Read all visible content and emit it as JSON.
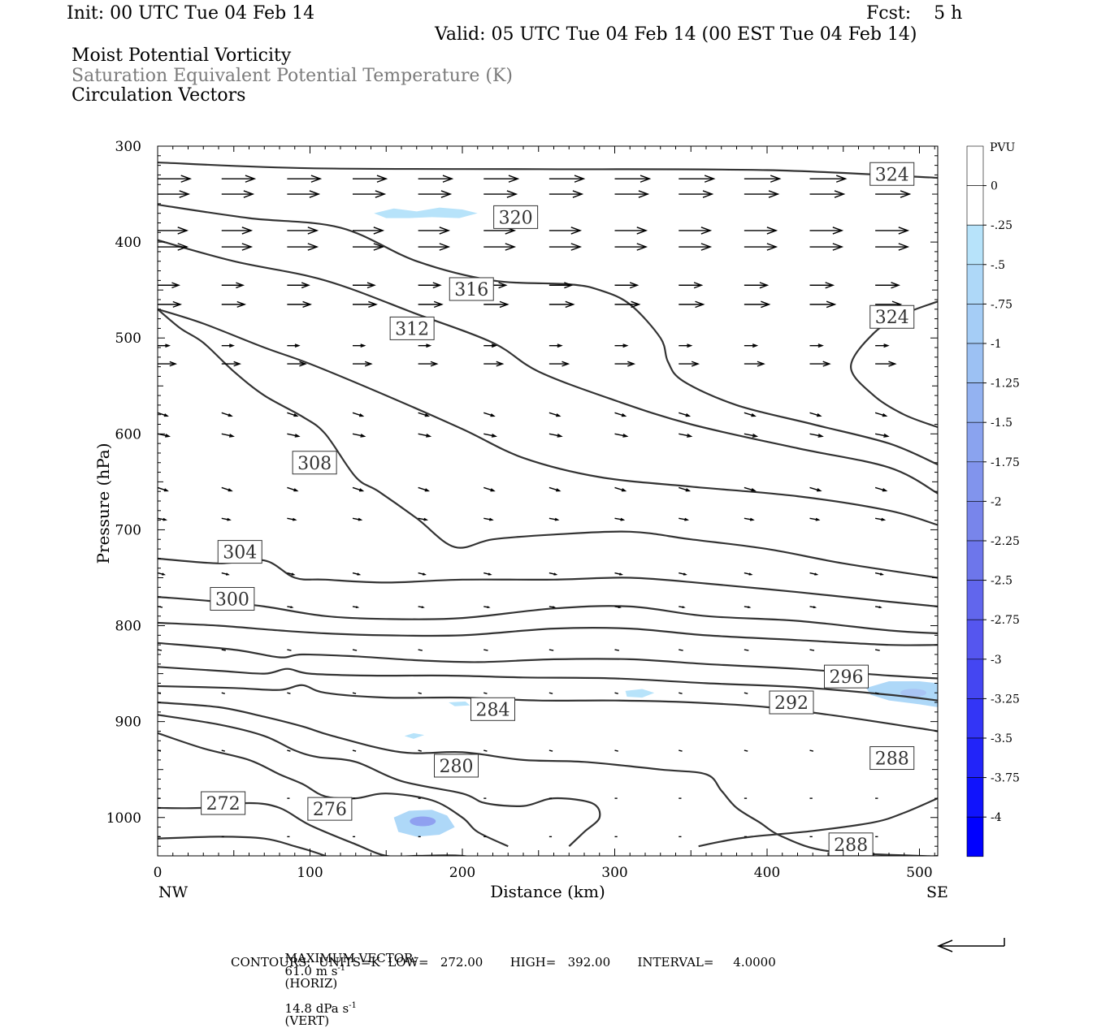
{
  "header": {
    "init": "Init: 00 UTC Tue 04 Feb 14",
    "fcst": "Fcst:    5 h",
    "valid": "Valid: 05 UTC Tue 04 Feb 14 (00 EST Tue 04 Feb 14)",
    "field1": "Moist Potential Vorticity",
    "field2": "Saturation Equivalent Potential Temperature (K)",
    "field3": "Circulation Vectors"
  },
  "footer": {
    "max_vector_label": "MAXIMUM VECTOR:",
    "horiz_value": "61.0 m s",
    "horiz_exp": "-1",
    "horiz_tag": "(HORIZ)",
    "vert_value": "14.8 dPa s",
    "vert_exp": "-1",
    "vert_tag": "(VERT)",
    "contours": "CONTOURS:  UNITS=K  LOW=   272.00       HIGH=   392.00       INTERVAL=     4.0000"
  },
  "colors": {
    "contour": "#333333",
    "pv_light": "#b7e3fa",
    "pv_mid": "#8fa0f0",
    "pv_dark": "#0000ff"
  },
  "chart_data": {
    "type": "contour",
    "xlabel": "Distance (km)",
    "ylabel": "Pressure (hPa)",
    "xlim": [
      0,
      512
    ],
    "ylim": [
      1040,
      300
    ],
    "xticks": [
      0,
      100,
      200,
      300,
      400,
      500
    ],
    "yticks": [
      300,
      400,
      500,
      600,
      700,
      800,
      900,
      1000
    ],
    "x_end_labels": {
      "left": "NW",
      "right": "SE"
    },
    "colorbar": {
      "title": "PVU",
      "labels": [
        "0",
        "-.25",
        "-.5",
        "-.75",
        "-1",
        "-1.25",
        "-1.5",
        "-1.75",
        "-2",
        "-2.25",
        "-2.5",
        "-2.75",
        "-3",
        "-3.25",
        "-3.5",
        "-3.75",
        "-4"
      ],
      "colors": [
        "#ffffff",
        "#ffffff",
        "#b7e3fa",
        "#aed8f8",
        "#a5cdf6",
        "#9cc1f3",
        "#93b2f1",
        "#8aa3ef",
        "#8194ed",
        "#7885eb",
        "#6d76eb",
        "#6166ed",
        "#5556ef",
        "#4446f2",
        "#3335f6",
        "#2224f9",
        "#1013fc",
        "#0000ff"
      ]
    },
    "contour_lines": [
      {
        "label": "324",
        "points": [
          [
            0,
            317
          ],
          [
            100,
            323
          ],
          [
            250,
            324
          ],
          [
            400,
            325
          ],
          [
            512,
            333
          ]
        ],
        "label_at": [
          482,
          329
        ]
      },
      {
        "label": "324",
        "points": [
          [
            512,
            462
          ],
          [
            490,
            475
          ],
          [
            470,
            495
          ],
          [
            455,
            530
          ],
          [
            470,
            560
          ],
          [
            490,
            580
          ],
          [
            512,
            593
          ]
        ],
        "label_at": [
          482,
          478
        ]
      },
      {
        "label": "320",
        "points": [
          [
            0,
            361
          ],
          [
            60,
            375
          ],
          [
            120,
            385
          ],
          [
            170,
            420
          ],
          [
            220,
            440
          ],
          [
            270,
            444
          ],
          [
            290,
            450
          ],
          [
            310,
            465
          ],
          [
            330,
            500
          ],
          [
            335,
            525
          ],
          [
            345,
            545
          ],
          [
            380,
            570
          ],
          [
            430,
            590
          ],
          [
            480,
            610
          ],
          [
            512,
            632
          ]
        ],
        "label_at": [
          235,
          374
        ]
      },
      {
        "label": "316",
        "points": [
          [
            0,
            398
          ],
          [
            50,
            420
          ],
          [
            110,
            440
          ],
          [
            170,
            475
          ],
          [
            220,
            505
          ],
          [
            250,
            535
          ],
          [
            300,
            565
          ],
          [
            350,
            590
          ],
          [
            420,
            615
          ],
          [
            480,
            635
          ],
          [
            512,
            662
          ]
        ],
        "label_at": [
          206,
          449
        ]
      },
      {
        "label": "312",
        "points": [
          [
            0,
            470
          ],
          [
            30,
            485
          ],
          [
            70,
            510
          ],
          [
            100,
            527
          ],
          [
            150,
            560
          ],
          [
            200,
            595
          ],
          [
            240,
            625
          ],
          [
            290,
            645
          ],
          [
            350,
            655
          ],
          [
            420,
            665
          ],
          [
            480,
            680
          ],
          [
            512,
            695
          ]
        ],
        "label_at": [
          167,
          490
        ]
      },
      {
        "label": "308",
        "points": [
          [
            0,
            470
          ],
          [
            15,
            490
          ],
          [
            30,
            505
          ],
          [
            50,
            535
          ],
          [
            70,
            560
          ],
          [
            95,
            582
          ],
          [
            110,
            600
          ],
          [
            130,
            645
          ],
          [
            145,
            660
          ],
          [
            170,
            688
          ],
          [
            195,
            718
          ],
          [
            220,
            710
          ],
          [
            260,
            705
          ],
          [
            310,
            702
          ],
          [
            350,
            710
          ],
          [
            400,
            720
          ],
          [
            450,
            735
          ],
          [
            512,
            750
          ]
        ],
        "label_at": [
          103,
          630
        ]
      },
      {
        "label": "304",
        "points": [
          [
            0,
            730
          ],
          [
            40,
            735
          ],
          [
            70,
            732
          ],
          [
            90,
            750
          ],
          [
            110,
            752
          ],
          [
            150,
            755
          ],
          [
            200,
            752
          ],
          [
            260,
            752
          ],
          [
            310,
            750
          ],
          [
            360,
            756
          ],
          [
            420,
            765
          ],
          [
            480,
            775
          ],
          [
            512,
            780
          ]
        ],
        "label_at": [
          54,
          723
        ]
      },
      {
        "label": "300",
        "points": [
          [
            0,
            770
          ],
          [
            40,
            775
          ],
          [
            70,
            780
          ],
          [
            110,
            790
          ],
          [
            150,
            793
          ],
          [
            200,
            792
          ],
          [
            260,
            782
          ],
          [
            310,
            780
          ],
          [
            360,
            790
          ],
          [
            420,
            795
          ],
          [
            480,
            805
          ],
          [
            512,
            808
          ]
        ],
        "label_at": [
          49,
          772
        ]
      },
      {
        "label": "",
        "points": [
          [
            0,
            797
          ],
          [
            40,
            800
          ],
          [
            80,
            805
          ],
          [
            110,
            808
          ],
          [
            150,
            810
          ],
          [
            200,
            810
          ],
          [
            260,
            803
          ],
          [
            310,
            803
          ],
          [
            360,
            810
          ],
          [
            420,
            815
          ],
          [
            480,
            820
          ],
          [
            512,
            820
          ]
        ],
        "label_at": null
      },
      {
        "label": "",
        "points": [
          [
            0,
            818
          ],
          [
            50,
            825
          ],
          [
            80,
            833
          ],
          [
            95,
            830
          ],
          [
            130,
            832
          ],
          [
            170,
            836
          ],
          [
            210,
            838
          ],
          [
            260,
            835
          ],
          [
            310,
            835
          ],
          [
            360,
            840
          ],
          [
            420,
            845
          ],
          [
            480,
            852
          ],
          [
            512,
            855
          ]
        ],
        "label_at": null
      },
      {
        "label": "296",
        "points": [
          [
            0,
            843
          ],
          [
            40,
            847
          ],
          [
            70,
            850
          ],
          [
            85,
            845
          ],
          [
            100,
            850
          ],
          [
            140,
            852
          ],
          [
            190,
            852
          ],
          [
            240,
            854
          ],
          [
            300,
            855
          ],
          [
            360,
            860
          ],
          [
            420,
            864
          ],
          [
            480,
            872
          ],
          [
            512,
            878
          ]
        ],
        "label_at": [
          452,
          853
        ]
      },
      {
        "label": "292",
        "points": [
          [
            0,
            863
          ],
          [
            50,
            865
          ],
          [
            80,
            867
          ],
          [
            95,
            862
          ],
          [
            110,
            870
          ],
          [
            150,
            875
          ],
          [
            200,
            875
          ],
          [
            250,
            878
          ],
          [
            300,
            878
          ],
          [
            350,
            880
          ],
          [
            400,
            885
          ],
          [
            450,
            895
          ],
          [
            500,
            907
          ],
          [
            512,
            910
          ]
        ],
        "label_at": [
          416,
          880
        ]
      },
      {
        "label": "288",
        "points": [
          [
            0,
            880
          ],
          [
            40,
            885
          ],
          [
            70,
            895
          ],
          [
            95,
            905
          ],
          [
            115,
            915
          ],
          [
            160,
            932
          ],
          [
            200,
            932
          ],
          [
            240,
            940
          ],
          [
            280,
            942
          ],
          [
            330,
            950
          ],
          [
            360,
            955
          ],
          [
            370,
            972
          ],
          [
            380,
            990
          ],
          [
            395,
            1005
          ],
          [
            410,
            1020
          ],
          [
            440,
            1035
          ],
          [
            500,
            1040
          ],
          [
            512,
            1040
          ]
        ],
        "label_at": [
          482,
          938
        ]
      },
      {
        "label": "288",
        "points": [
          [
            355,
            1030
          ],
          [
            370,
            1025
          ],
          [
            390,
            1020
          ],
          [
            430,
            1014
          ],
          [
            470,
            1005
          ],
          [
            490,
            995
          ],
          [
            512,
            980
          ]
        ],
        "label_at": [
          455,
          1028
        ]
      },
      {
        "label": "284",
        "points": [
          [
            0,
            893
          ],
          [
            40,
            903
          ],
          [
            70,
            915
          ],
          [
            90,
            930
          ],
          [
            105,
            937
          ],
          [
            130,
            942
          ],
          [
            160,
            962
          ],
          [
            200,
            975
          ],
          [
            215,
            985
          ],
          [
            240,
            988
          ],
          [
            260,
            980
          ],
          [
            285,
            985
          ],
          [
            290,
            1000
          ],
          [
            280,
            1015
          ],
          [
            270,
            1030
          ]
        ],
        "label_at": [
          220,
          887
        ]
      },
      {
        "label": "280",
        "points": [
          [
            0,
            912
          ],
          [
            30,
            928
          ],
          [
            60,
            940
          ],
          [
            80,
            955
          ],
          [
            95,
            965
          ],
          [
            110,
            978
          ],
          [
            130,
            980
          ],
          [
            150,
            975
          ],
          [
            180,
            982
          ],
          [
            200,
            1000
          ],
          [
            210,
            1015
          ],
          [
            230,
            1030
          ]
        ],
        "label_at": [
          196,
          946
        ]
      },
      {
        "label": "276",
        "points": [
          [
            0,
            990
          ],
          [
            30,
            990
          ],
          [
            60,
            985
          ],
          [
            80,
            990
          ],
          [
            100,
            1008
          ],
          [
            130,
            1028
          ],
          [
            150,
            1040
          ],
          [
            170,
            1040
          ],
          [
            200,
            1040
          ],
          [
            230,
            1048
          ]
        ],
        "label_at": [
          113,
          991
        ]
      },
      {
        "label": "272",
        "points": [
          [
            0,
            1022
          ],
          [
            40,
            1020
          ],
          [
            70,
            1022
          ],
          [
            90,
            1030
          ],
          [
            110,
            1040
          ],
          [
            140,
            1060
          ],
          [
            160,
            1065
          ],
          [
            200,
            1062
          ],
          [
            240,
            1080
          ],
          [
            300,
            1080
          ],
          [
            400,
            1080
          ],
          [
            512,
            1077
          ]
        ],
        "label_at": [
          43,
          985
        ]
      }
    ],
    "pv_regions": [
      {
        "name": "upper",
        "points": [
          [
            142,
            370
          ],
          [
            155,
            365
          ],
          [
            170,
            368
          ],
          [
            185,
            364
          ],
          [
            200,
            366
          ],
          [
            210,
            370
          ],
          [
            198,
            375
          ],
          [
            180,
            374
          ],
          [
            165,
            375
          ],
          [
            150,
            375
          ]
        ],
        "level": "-.25"
      },
      {
        "name": "low-level-1",
        "points": [
          [
            155,
            1000
          ],
          [
            165,
            993
          ],
          [
            180,
            992
          ],
          [
            190,
            998
          ],
          [
            195,
            1010
          ],
          [
            185,
            1018
          ],
          [
            170,
            1020
          ],
          [
            158,
            1015
          ]
        ],
        "level": "-.5"
      },
      {
        "name": "low-level-2",
        "points": [
          [
            465,
            865
          ],
          [
            480,
            858
          ],
          [
            500,
            858
          ],
          [
            512,
            860
          ],
          [
            512,
            885
          ],
          [
            500,
            882
          ],
          [
            480,
            878
          ],
          [
            468,
            872
          ]
        ],
        "level": "-.5"
      },
      {
        "name": "small-1",
        "points": [
          [
            307,
            868
          ],
          [
            318,
            866
          ],
          [
            326,
            870
          ],
          [
            318,
            875
          ],
          [
            308,
            874
          ]
        ],
        "level": "-.25"
      },
      {
        "name": "small-2",
        "points": [
          [
            162,
            915
          ],
          [
            168,
            912
          ],
          [
            175,
            914
          ],
          [
            168,
            918
          ]
        ],
        "level": "-.25"
      },
      {
        "name": "small-3",
        "points": [
          [
            191,
            880
          ],
          [
            202,
            879
          ],
          [
            205,
            883
          ],
          [
            195,
            884
          ]
        ],
        "level": "-.25"
      }
    ]
  }
}
